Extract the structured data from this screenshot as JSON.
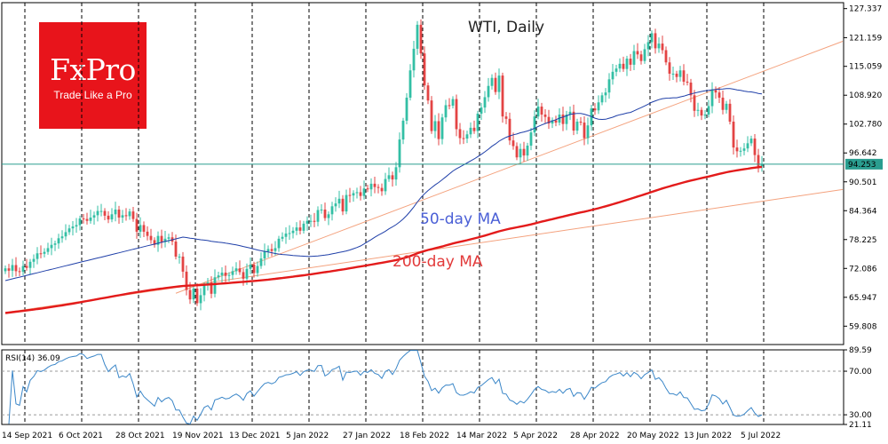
{
  "logo": {
    "name": "FxPro",
    "tagline": "Trade Like a Pro"
  },
  "chart_data": {
    "type": "candlestick",
    "title": "WTI, Daily",
    "price_axis": {
      "ticks": [
        127.337,
        121.159,
        115.059,
        108.92,
        102.78,
        96.642,
        90.501,
        84.364,
        78.225,
        72.086,
        65.947,
        59.808
      ],
      "tick_labels": [
        "127.337",
        "121.159",
        "115.059",
        "108.920",
        "102.780",
        "96.642",
        "90.501",
        "84.364",
        "78.225",
        "72.086",
        "65.947",
        "59.808"
      ],
      "range": [
        55.9,
        128.6
      ]
    },
    "current_price": {
      "value": 94.253,
      "label": "94.253"
    },
    "x_axis": {
      "labels": [
        "14 Sep 2021",
        "6 Oct 2021",
        "28 Oct 2021",
        "19 Nov 2021",
        "13 Dec 2021",
        "5 Jan 2022",
        "27 Jan 2022",
        "18 Feb 2022",
        "14 Mar 2022",
        "5 Apr 2022",
        "28 Apr 2022",
        "20 May 2022",
        "13 Jun 2022",
        "5 Jul 2022"
      ],
      "label_bar_index": [
        0,
        16,
        32,
        48,
        64,
        80,
        96,
        112,
        128,
        144,
        160,
        176,
        192,
        208
      ]
    },
    "closes": [
      72.1,
      71.6,
      72.8,
      71.5,
      71.4,
      72.6,
      72.2,
      73.5,
      74.1,
      75.3,
      75.2,
      75.6,
      76.4,
      77.1,
      77.4,
      78.5,
      78.9,
      79.8,
      80.6,
      81.0,
      81.3,
      82.7,
      82.6,
      82.2,
      82.9,
      83.4,
      84.3,
      84.3,
      83.3,
      82.5,
      83.6,
      84.6,
      82.9,
      83.4,
      83.2,
      84.2,
      82.6,
      79.9,
      81.3,
      79.9,
      79.0,
      78.1,
      77.1,
      79.0,
      77.7,
      78.4,
      78.7,
      77.8,
      74.6,
      74.6,
      71.4,
      67.5,
      65.5,
      67.8,
      64.7,
      66.4,
      68.5,
      69.1,
      66.7,
      70.2,
      70.6,
      71.2,
      70.5,
      70.7,
      71.5,
      72.1,
      71.3,
      69.9,
      72.0,
      72.9,
      71.1,
      72.6,
      74.2,
      75.7,
      76.2,
      75.8,
      76.4,
      78.4,
      78.8,
      79.5,
      79.6,
      80.1,
      80.8,
      80.1,
      81.6,
      82.2,
      82.2,
      82.0,
      84.5,
      84.6,
      82.8,
      83.6,
      85.3,
      85.9,
      86.9,
      84.2,
      87.7,
      87.6,
      88.1,
      88.3,
      87.5,
      89.1,
      88.9,
      90.1,
      89.4,
      89.2,
      88.5,
      91.1,
      91.9,
      91.0,
      93.6,
      99.5,
      103.5,
      108.4,
      114.2,
      118.8,
      123.9,
      117.8,
      111.0,
      107.8,
      101.3,
      103.4,
      99.6,
      104.2,
      106.8,
      106.7,
      108.1,
      101.7,
      99.8,
      99.7,
      100.6,
      102.0,
      101.3,
      105.0,
      106.3,
      108.5,
      110.9,
      112.6,
      109.6,
      113.1,
      104.4,
      103.9,
      99.3,
      98.1,
      95.7,
      97.5,
      96.1,
      98.2,
      101.0,
      104.4,
      106.5,
      104.8,
      104.3,
      102.9,
      103.6,
      103.1,
      104.8,
      102.8,
      104.8,
      105.4,
      101.4,
      103.3,
      103.1,
      99.8,
      102.5,
      106.1,
      105.7,
      107.4,
      108.9,
      109.5,
      112.3,
      113.9,
      114.6,
      115.6,
      114.5,
      116.7,
      115.4,
      118.3,
      117.6,
      116.2,
      118.7,
      120.2,
      122.1,
      118.9,
      119.9,
      118.5,
      115.9,
      113.5,
      113.5,
      112.8,
      114.2,
      111.8,
      111.6,
      108.9,
      105.6,
      105.8,
      104.6,
      104.8,
      106.6,
      110.0,
      109.5,
      108.4,
      105.8,
      107.1,
      103.3,
      97.8,
      97.0,
      97.1,
      97.6,
      98.7,
      99.7,
      96.2,
      93.8,
      94.3
    ],
    "ma_50": {
      "label": "50-day MA",
      "color": "#1f3fa8",
      "label_color": "#4a5fd6"
    },
    "ma_200": {
      "label": "200-day MA",
      "color": "#e31b1b",
      "label_color": "#e23a3a"
    },
    "trendlines": {
      "color": "#f4a27e",
      "count": 2
    },
    "rsi": {
      "title": "RSI(14) 36.09",
      "levels": [
        30,
        70
      ],
      "ticks": [
        89.59,
        70.0,
        30.0,
        21.11
      ],
      "tick_labels": [
        "89.59",
        "70.00",
        "30.00",
        "21.11"
      ],
      "range": [
        21.11,
        89.59
      ],
      "color": "#3a86c8"
    },
    "colors": {
      "up": "#33bfa5",
      "down": "#e34444",
      "grid": "#000000",
      "frame": "#000000"
    }
  }
}
